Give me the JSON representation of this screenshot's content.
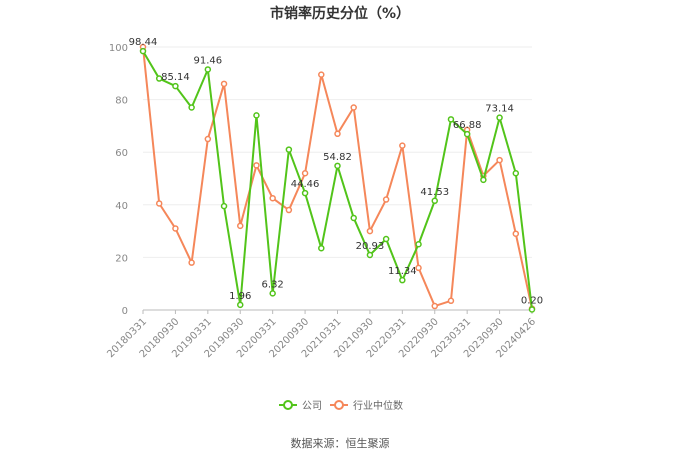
{
  "page": {
    "source": "数据来源：恒生聚源"
  },
  "chart_data": {
    "type": "line",
    "title": "市销率历史分位（%）",
    "xlabel": "",
    "ylabel": "",
    "ylim": [
      0,
      100
    ],
    "yticks": [
      "0",
      "20",
      "40",
      "60",
      "80",
      "100"
    ],
    "grid": true,
    "legend_position": "bottom",
    "x_tick_labels": [
      "20180331",
      "20180930",
      "20190331",
      "20190930",
      "20200331",
      "20200930",
      "20210331",
      "20210930",
      "20220331",
      "20220930",
      "20230331",
      "20230930",
      "20240426"
    ],
    "series": [
      {
        "name": "公司",
        "color": "#52c41a",
        "values": [
          98.44,
          88,
          85.14,
          77,
          91.46,
          39.5,
          1.96,
          74,
          6.32,
          61,
          44.46,
          23.5,
          54.82,
          35,
          20.93,
          27,
          11.34,
          25,
          41.53,
          72.5,
          66.88,
          49.5,
          73.14,
          52,
          0.2
        ],
        "labels": [
          "98.44",
          "",
          "85.14",
          "",
          "91.46",
          "",
          "1.96",
          "",
          "6.32",
          "",
          "44.46",
          "",
          "54.82",
          "",
          "20.93",
          "",
          "11.34",
          "",
          "41.53",
          "",
          "66.88",
          "",
          "73.14",
          "",
          "0.20"
        ]
      },
      {
        "name": "行业中位数",
        "color": "#f5875a",
        "values": [
          100,
          40.5,
          31,
          18,
          65,
          86,
          32,
          55,
          42.5,
          38,
          52,
          89.5,
          67,
          77,
          30,
          42,
          62.5,
          16,
          1.5,
          3.5,
          68.5,
          51,
          57,
          29,
          0.5
        ]
      }
    ]
  }
}
